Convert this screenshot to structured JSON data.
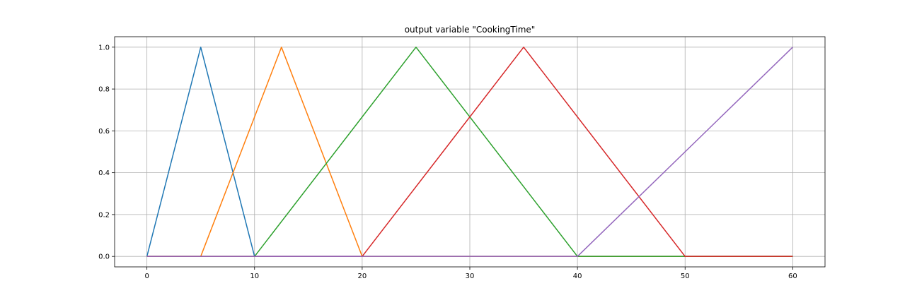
{
  "chart_data": {
    "type": "line",
    "title": "output variable \"CookingTime\"",
    "xlabel": "",
    "ylabel": "",
    "xlim": [
      -3,
      63
    ],
    "ylim": [
      -0.05,
      1.05
    ],
    "xticks": [
      0,
      10,
      20,
      30,
      40,
      50,
      60
    ],
    "yticks": [
      0.0,
      0.2,
      0.4,
      0.6,
      0.8,
      1.0
    ],
    "grid": true,
    "legend": "none",
    "series": [
      {
        "color": "#1f77b4",
        "x": [
          0,
          5,
          10,
          60
        ],
        "y": [
          0,
          1,
          0,
          0
        ]
      },
      {
        "color": "#ff7f0e",
        "x": [
          0,
          5,
          12.5,
          20,
          60
        ],
        "y": [
          0,
          0,
          1,
          0,
          0
        ]
      },
      {
        "color": "#2ca02c",
        "x": [
          0,
          10,
          25,
          40,
          60
        ],
        "y": [
          0,
          0,
          1,
          0,
          0
        ]
      },
      {
        "color": "#d62728",
        "x": [
          0,
          20,
          35,
          50,
          60
        ],
        "y": [
          0,
          0,
          1,
          0,
          0
        ]
      },
      {
        "color": "#9467bd",
        "x": [
          0,
          40,
          60
        ],
        "y": [
          0,
          0,
          1
        ]
      }
    ]
  }
}
